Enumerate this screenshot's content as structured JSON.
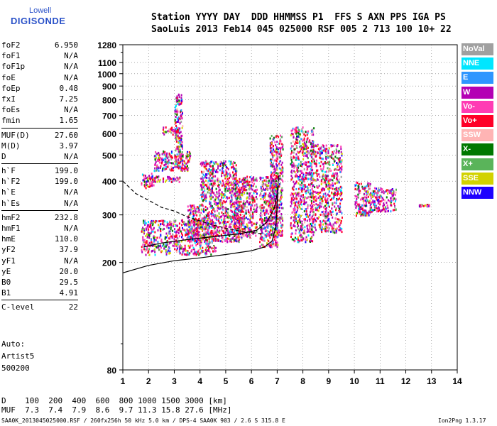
{
  "logo": {
    "line1": "Lowell",
    "line2": "DIGISONDE"
  },
  "header": {
    "line1": "Station YYYY DAY  DDD HHMMSS P1  FFS S AXN PPS IGA PS",
    "line2": "SaoLuis 2013 Feb14 045 025000 RSF 005 2 713 100 10+ 22"
  },
  "params": [
    {
      "label": "foF2",
      "value": "6.950"
    },
    {
      "label": "foF1",
      "value": "N/A"
    },
    {
      "label": "foF1p",
      "value": "N/A"
    },
    {
      "label": "foE",
      "value": "N/A"
    },
    {
      "label": "foEp",
      "value": "0.48"
    },
    {
      "label": "fxI",
      "value": "7.25"
    },
    {
      "label": "foEs",
      "value": "N/A"
    },
    {
      "label": "fmin",
      "value": "1.65"
    },
    {
      "label": "MUF(D)",
      "value": "27.60"
    },
    {
      "label": "M(D)",
      "value": "3.97"
    },
    {
      "label": "D",
      "value": "N/A"
    },
    {
      "label": "h`F",
      "value": "199.0"
    },
    {
      "label": "h`F2",
      "value": "199.0"
    },
    {
      "label": "h`E",
      "value": "N/A"
    },
    {
      "label": "h`Es",
      "value": "N/A"
    },
    {
      "label": "hmF2",
      "value": "232.8"
    },
    {
      "label": "hmF1",
      "value": "N/A"
    },
    {
      "label": "hmE",
      "value": "110.0"
    },
    {
      "label": "yF2",
      "value": "37.9"
    },
    {
      "label": "yF1",
      "value": "N/A"
    },
    {
      "label": "yE",
      "value": "20.0"
    },
    {
      "label": "B0",
      "value": "29.5"
    },
    {
      "label": "B1",
      "value": "4.91"
    },
    {
      "label": "C-level",
      "value": "22"
    }
  ],
  "autoscaling": {
    "line1": "Auto:",
    "line2": "Artist5",
    "line3": "500200"
  },
  "legend": [
    {
      "label": "NoVal",
      "color": "#a0a0a0"
    },
    {
      "label": "NNE",
      "color": "#00e6ff"
    },
    {
      "label": "E",
      "color": "#2e96ff"
    },
    {
      "label": "W",
      "color": "#b400b4"
    },
    {
      "label": "Vo-",
      "color": "#ff3cb4"
    },
    {
      "label": "Vo+",
      "color": "#ff0028"
    },
    {
      "label": "SSW",
      "color": "#ffb4b4"
    },
    {
      "label": "X-",
      "color": "#007800"
    },
    {
      "label": "X+",
      "color": "#5ab45a"
    },
    {
      "label": "SSE",
      "color": "#d2d200"
    },
    {
      "label": "NNW",
      "color": "#1e00ff"
    }
  ],
  "muf_table": {
    "line1": "D    100  200  400  600  800 1000 1500 3000 [km]",
    "line2": "MUF  7.3  7.4  7.9  8.6  9.7 11.3 15.8 27.6 [MHz]"
  },
  "footer": {
    "left": "SAA0K_2013045025000.RSF / 260fx256h 50 kHz 5.0 km / DPS-4 SAA0K 903 / 2.6 S 315.8 E",
    "right": "Ion2Png 1.3.17"
  },
  "chart_data": {
    "type": "scatter",
    "title": "",
    "xlabel": "",
    "ylabel": "",
    "xlim": [
      1,
      14
    ],
    "ylim": [
      80,
      1280
    ],
    "y_scale": "log",
    "grid": true,
    "x_ticks": [
      1,
      2,
      3,
      4,
      5,
      6,
      7,
      8,
      9,
      10,
      11,
      12,
      13,
      14
    ],
    "y_ticks": [
      80,
      200,
      300,
      400,
      500,
      600,
      700,
      800,
      900,
      1000,
      1100,
      1280
    ],
    "echo_clusters": [
      {
        "f_range": [
          1.7,
          2.2
        ],
        "h_range": [
          380,
          430
        ]
      },
      {
        "f_range": [
          1.9,
          3.2
        ],
        "h_range": [
          400,
          420
        ]
      },
      {
        "f_range": [
          2.2,
          3.6
        ],
        "h_range": [
          440,
          520
        ]
      },
      {
        "f_range": [
          2.5,
          3.2
        ],
        "h_range": [
          600,
          640
        ]
      },
      {
        "f_range": [
          3.0,
          3.3
        ],
        "h_range": [
          450,
          850
        ]
      },
      {
        "f_range": [
          1.7,
          4.6
        ],
        "h_range": [
          215,
          290
        ]
      },
      {
        "f_range": [
          3.5,
          5.6
        ],
        "h_range": [
          240,
          330
        ]
      },
      {
        "f_range": [
          4.0,
          5.4
        ],
        "h_range": [
          330,
          480
        ]
      },
      {
        "f_range": [
          5.3,
          6.2
        ],
        "h_range": [
          250,
          420
        ]
      },
      {
        "f_range": [
          6.3,
          7.0
        ],
        "h_range": [
          230,
          420
        ]
      },
      {
        "f_range": [
          6.7,
          7.2
        ],
        "h_range": [
          250,
          600
        ]
      },
      {
        "f_range": [
          7.5,
          8.4
        ],
        "h_range": [
          240,
          640
        ]
      },
      {
        "f_range": [
          8.3,
          9.5
        ],
        "h_range": [
          260,
          550
        ]
      },
      {
        "f_range": [
          10.0,
          10.6
        ],
        "h_range": [
          300,
          400
        ]
      },
      {
        "f_range": [
          10.6,
          11.6
        ],
        "h_range": [
          310,
          380
        ]
      },
      {
        "f_range": [
          12.5,
          12.9
        ],
        "h_range": [
          325,
          330
        ]
      }
    ],
    "trace_curves": [
      {
        "name": "",
        "style": "solid",
        "points": [
          [
            1,
            183
          ],
          [
            2,
            195
          ],
          [
            3,
            203
          ],
          [
            4,
            208
          ],
          [
            5,
            214
          ],
          [
            6,
            221
          ],
          [
            6.5,
            228
          ],
          [
            6.8,
            240
          ],
          [
            6.95,
            270
          ],
          [
            7.0,
            330
          ],
          [
            7.05,
            420
          ]
        ]
      },
      {
        "name": "",
        "style": "solid",
        "points": [
          [
            1.8,
            228
          ],
          [
            2.5,
            236
          ],
          [
            3.5,
            243
          ],
          [
            4.5,
            249
          ],
          [
            5.5,
            255
          ],
          [
            6.2,
            263
          ],
          [
            6.6,
            282
          ],
          [
            6.9,
            320
          ],
          [
            7.0,
            360
          ]
        ]
      },
      {
        "name": "",
        "style": "dashed",
        "points": [
          [
            1,
            400
          ],
          [
            1.5,
            360
          ],
          [
            2,
            340
          ],
          [
            2.5,
            320
          ],
          [
            3,
            310
          ],
          [
            3.5,
            295
          ],
          [
            4,
            285
          ],
          [
            4.5,
            275
          ],
          [
            5,
            268
          ],
          [
            5.5,
            262
          ],
          [
            6,
            258
          ],
          [
            6.5,
            255
          ]
        ]
      }
    ]
  }
}
